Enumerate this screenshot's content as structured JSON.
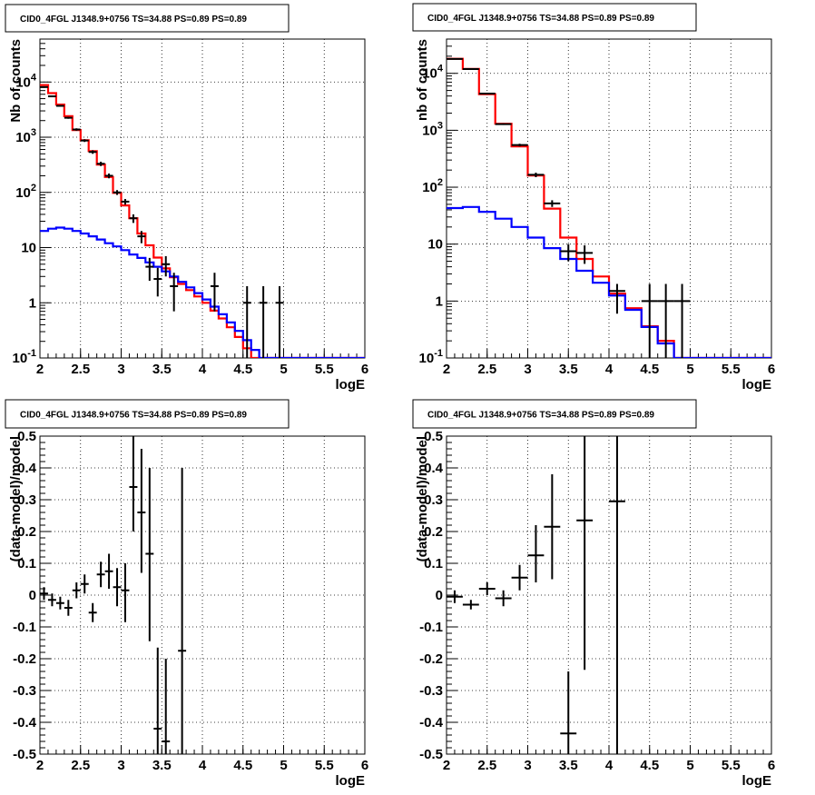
{
  "chart_data": [
    {
      "type": "line",
      "title": "CID0_4FGL J1348.9+0756 TS=34.88 PS=0.89 PS=0.89",
      "xlabel": "logE",
      "ylabel": "Nb of counts",
      "xlim": [
        2,
        6
      ],
      "ylim": [
        0.1,
        60000
      ],
      "yscale": "log",
      "grid": true,
      "xticks": [
        "2",
        "2.5",
        "3",
        "3.5",
        "4",
        "4.5",
        "5",
        "5.5",
        "6"
      ],
      "yticks": [
        {
          "v": 0.1,
          "base": "10",
          "exp": "-1"
        },
        {
          "v": 1,
          "label": "1"
        },
        {
          "v": 10,
          "label": "10"
        },
        {
          "v": 100,
          "base": "10",
          "exp": "2"
        },
        {
          "v": 1000,
          "base": "10",
          "exp": "3"
        },
        {
          "v": 10000,
          "base": "10",
          "exp": "4"
        }
      ],
      "binwidth": 0.1,
      "series": [
        {
          "color": "#ff0000",
          "x0": 2.0,
          "values": [
            8800,
            6300,
            3900,
            2400,
            1350,
            880,
            560,
            320,
            190,
            98,
            58,
            34,
            18,
            11,
            6.6,
            4.2,
            2.9,
            2.2,
            1.7,
            1.3,
            1.0,
            0.72,
            0.52,
            0.36,
            0.24,
            0.15,
            0.1,
            0.09,
            0.09,
            0.09,
            0.09,
            0.09,
            0.09,
            0.09,
            0.09,
            0.09,
            0.09,
            0.09,
            0.09,
            0.09
          ]
        },
        {
          "color": "#0000ff",
          "x0": 2.0,
          "values": [
            20,
            22,
            23,
            22,
            20,
            18,
            16,
            14,
            12,
            10.5,
            9,
            7.5,
            6.5,
            5.4,
            4.5,
            3.7,
            3.0,
            2.4,
            1.9,
            1.5,
            1.15,
            0.85,
            0.62,
            0.44,
            0.31,
            0.21,
            0.14,
            0.09,
            0.09,
            0.09,
            0.09,
            0.09,
            0.09,
            0.09,
            0.09,
            0.09,
            0.09,
            0.09,
            0.09,
            0.09
          ]
        }
      ],
      "points": [
        {
          "x": 2.05,
          "y": 8100,
          "xerr": 0.05,
          "ylo": 7900,
          "yhi": 8300
        },
        {
          "x": 2.15,
          "y": 5500,
          "xerr": 0.05,
          "ylo": 5350,
          "yhi": 5650
        },
        {
          "x": 2.25,
          "y": 3700,
          "xerr": 0.05,
          "ylo": 3580,
          "yhi": 3820
        },
        {
          "x": 2.35,
          "y": 2250,
          "xerr": 0.05,
          "ylo": 2160,
          "yhi": 2340
        },
        {
          "x": 2.45,
          "y": 1380,
          "xerr": 0.05,
          "ylo": 1310,
          "yhi": 1450
        },
        {
          "x": 2.55,
          "y": 870,
          "xerr": 0.05,
          "ylo": 820,
          "yhi": 920
        },
        {
          "x": 2.65,
          "y": 540,
          "xerr": 0.05,
          "ylo": 500,
          "yhi": 580
        },
        {
          "x": 2.75,
          "y": 330,
          "xerr": 0.05,
          "ylo": 300,
          "yhi": 360
        },
        {
          "x": 2.85,
          "y": 200,
          "xerr": 0.05,
          "ylo": 180,
          "yhi": 220
        },
        {
          "x": 2.95,
          "y": 100,
          "xerr": 0.05,
          "ylo": 90,
          "yhi": 110
        },
        {
          "x": 3.05,
          "y": 68,
          "xerr": 0.05,
          "ylo": 60,
          "yhi": 76
        },
        {
          "x": 3.15,
          "y": 34,
          "xerr": 0.05,
          "ylo": 28,
          "yhi": 40
        },
        {
          "x": 3.25,
          "y": 16,
          "xerr": 0.05,
          "ylo": 12,
          "yhi": 20
        },
        {
          "x": 3.35,
          "y": 4.5,
          "xerr": 0.05,
          "ylo": 2.5,
          "yhi": 6.5
        },
        {
          "x": 3.45,
          "y": 2.7,
          "xerr": 0.05,
          "ylo": 1.3,
          "yhi": 4.3
        },
        {
          "x": 3.55,
          "y": 5.0,
          "xerr": 0.05,
          "ylo": 3.0,
          "yhi": 7.0
        },
        {
          "x": 3.65,
          "y": 2.0,
          "xerr": 0.05,
          "ylo": 0.7,
          "yhi": 3.5
        },
        {
          "x": 4.15,
          "y": 2.0,
          "xerr": 0.05,
          "ylo": 0.7,
          "yhi": 3.5
        },
        {
          "x": 4.55,
          "y": 1.0,
          "xerr": 0.05,
          "ylo": 0.1,
          "yhi": 2.0
        },
        {
          "x": 4.75,
          "y": 1.0,
          "xerr": 0.05,
          "ylo": 0.1,
          "yhi": 2.0
        },
        {
          "x": 4.95,
          "y": 1.0,
          "xerr": 0.05,
          "ylo": 0.1,
          "yhi": 2.0
        }
      ]
    },
    {
      "type": "line",
      "title": "CID0_4FGL J1348.9+0756 TS=34.88 PS=0.89 PS=0.89",
      "xlabel": "logE",
      "ylabel": "nb of counts",
      "xlim": [
        2,
        6
      ],
      "ylim": [
        0.1,
        40000
      ],
      "yscale": "log",
      "grid": true,
      "xticks": [
        "2",
        "2.5",
        "3",
        "3.5",
        "4",
        "4.5",
        "5",
        "5.5",
        "6"
      ],
      "yticks": [
        {
          "v": 0.1,
          "base": "10",
          "exp": "-1"
        },
        {
          "v": 1,
          "label": "1"
        },
        {
          "v": 10,
          "label": "10"
        },
        {
          "v": 100,
          "base": "10",
          "exp": "2"
        },
        {
          "v": 1000,
          "base": "10",
          "exp": "3"
        },
        {
          "v": 10000,
          "base": "10",
          "exp": "4"
        }
      ],
      "binwidth": 0.2,
      "series": [
        {
          "color": "#ff0000",
          "x0": 2.0,
          "values": [
            18000,
            12000,
            4300,
            1300,
            520,
            160,
            42,
            13,
            5.5,
            2.7,
            1.35,
            0.75,
            0.36,
            0.2,
            0.1,
            0.1,
            0.1,
            0.1,
            0.1,
            0.1
          ]
        },
        {
          "color": "#0000ff",
          "x0": 2.0,
          "values": [
            43,
            45,
            37,
            28,
            20,
            13,
            8.5,
            5.5,
            3.4,
            2.1,
            1.25,
            0.7,
            0.35,
            0.18,
            0.1,
            0.1,
            0.1,
            0.1,
            0.1,
            0.1
          ]
        }
      ],
      "points": [
        {
          "x": 2.1,
          "y": 17900,
          "xerr": 0.1,
          "ylo": 17600,
          "yhi": 18200
        },
        {
          "x": 2.3,
          "y": 11900,
          "xerr": 0.1,
          "ylo": 11700,
          "yhi": 12100
        },
        {
          "x": 2.5,
          "y": 4400,
          "xerr": 0.1,
          "ylo": 4300,
          "yhi": 4500
        },
        {
          "x": 2.7,
          "y": 1280,
          "xerr": 0.1,
          "ylo": 1240,
          "yhi": 1320
        },
        {
          "x": 2.9,
          "y": 550,
          "xerr": 0.1,
          "ylo": 520,
          "yhi": 580
        },
        {
          "x": 3.1,
          "y": 165,
          "xerr": 0.1,
          "ylo": 150,
          "yhi": 180
        },
        {
          "x": 3.3,
          "y": 52,
          "xerr": 0.1,
          "ylo": 45,
          "yhi": 59
        },
        {
          "x": 3.5,
          "y": 7.5,
          "xerr": 0.1,
          "ylo": 5,
          "yhi": 10
        },
        {
          "x": 3.7,
          "y": 7.0,
          "xerr": 0.1,
          "ylo": 4.5,
          "yhi": 9.5
        },
        {
          "x": 4.1,
          "y": 1.5,
          "xerr": 0.1,
          "ylo": 0.6,
          "yhi": 2.0
        },
        {
          "x": 4.5,
          "y": 1.0,
          "xerr": 0.1,
          "ylo": 0.1,
          "yhi": 2.0
        },
        {
          "x": 4.7,
          "y": 1.0,
          "xerr": 0.1,
          "ylo": 0.1,
          "yhi": 2.0
        },
        {
          "x": 4.9,
          "y": 1.0,
          "xerr": 0.1,
          "ylo": 0.1,
          "yhi": 2.0
        }
      ]
    },
    {
      "type": "scatter",
      "title": "CID0_4FGL J1348.9+0756 TS=34.88 PS=0.89 PS=0.89",
      "xlabel": "logE",
      "ylabel": "(data-model)/model",
      "xlim": [
        2,
        6
      ],
      "ylim": [
        -0.5,
        0.5
      ],
      "grid": true,
      "xticks": [
        "2",
        "2.5",
        "3",
        "3.5",
        "4",
        "4.5",
        "5",
        "5.5",
        "6"
      ],
      "yticks": [
        "-0.5",
        "-0.4",
        "-0.3",
        "-0.2",
        "-0.1",
        "0",
        "0.1",
        "0.2",
        "0.3",
        "0.4",
        "0.5"
      ],
      "points": [
        {
          "x": 2.05,
          "y": 0.005,
          "xerr": 0.05,
          "ylo": -0.015,
          "yhi": 0.025
        },
        {
          "x": 2.15,
          "y": -0.015,
          "xerr": 0.05,
          "ylo": -0.035,
          "yhi": 0.005
        },
        {
          "x": 2.25,
          "y": -0.025,
          "xerr": 0.05,
          "ylo": -0.045,
          "yhi": -0.005
        },
        {
          "x": 2.35,
          "y": -0.04,
          "xerr": 0.05,
          "ylo": -0.065,
          "yhi": -0.015
        },
        {
          "x": 2.45,
          "y": 0.015,
          "xerr": 0.05,
          "ylo": -0.01,
          "yhi": 0.04
        },
        {
          "x": 2.55,
          "y": 0.035,
          "xerr": 0.05,
          "ylo": 0.005,
          "yhi": 0.065
        },
        {
          "x": 2.65,
          "y": -0.055,
          "xerr": 0.05,
          "ylo": -0.085,
          "yhi": -0.025
        },
        {
          "x": 2.75,
          "y": 0.065,
          "xerr": 0.05,
          "ylo": 0.025,
          "yhi": 0.105
        },
        {
          "x": 2.85,
          "y": 0.075,
          "xerr": 0.05,
          "ylo": 0.02,
          "yhi": 0.13
        },
        {
          "x": 2.95,
          "y": 0.025,
          "xerr": 0.05,
          "ylo": -0.035,
          "yhi": 0.085
        },
        {
          "x": 3.05,
          "y": 0.015,
          "xerr": 0.05,
          "ylo": -0.085,
          "yhi": 0.1
        },
        {
          "x": 3.15,
          "y": 0.34,
          "xerr": 0.05,
          "ylo": 0.2,
          "yhi": 0.5
        },
        {
          "x": 3.25,
          "y": 0.26,
          "xerr": 0.05,
          "ylo": 0.07,
          "yhi": 0.46
        },
        {
          "x": 3.35,
          "y": 0.13,
          "xerr": 0.05,
          "ylo": -0.145,
          "yhi": 0.4
        },
        {
          "x": 3.45,
          "y": -0.42,
          "xerr": 0.05,
          "ylo": -0.5,
          "yhi": -0.165
        },
        {
          "x": 3.55,
          "y": -0.46,
          "xerr": 0.05,
          "ylo": -0.5,
          "yhi": -0.2
        },
        {
          "x": 3.75,
          "y": -0.175,
          "xerr": 0.05,
          "ylo": -0.5,
          "yhi": 0.4
        }
      ]
    },
    {
      "type": "scatter",
      "title": "CID0_4FGL J1348.9+0756 TS=34.88 PS=0.89 PS=0.89",
      "xlabel": "logE",
      "ylabel": "(data-model)/model",
      "xlim": [
        2,
        6
      ],
      "ylim": [
        -0.5,
        0.5
      ],
      "grid": true,
      "xticks": [
        "2",
        "2.5",
        "3",
        "3.5",
        "4",
        "4.5",
        "5",
        "5.5",
        "6"
      ],
      "yticks": [
        "-0.5",
        "-0.4",
        "-0.3",
        "-0.2",
        "-0.1",
        "0",
        "0.1",
        "0.2",
        "0.3",
        "0.4",
        "0.5"
      ],
      "points": [
        {
          "x": 2.1,
          "y": -0.005,
          "xerr": 0.1,
          "ylo": -0.025,
          "yhi": 0.015
        },
        {
          "x": 2.3,
          "y": -0.03,
          "xerr": 0.1,
          "ylo": -0.045,
          "yhi": -0.015
        },
        {
          "x": 2.5,
          "y": 0.02,
          "xerr": 0.1,
          "ylo": 0.0,
          "yhi": 0.04
        },
        {
          "x": 2.7,
          "y": -0.01,
          "xerr": 0.1,
          "ylo": -0.035,
          "yhi": 0.015
        },
        {
          "x": 2.9,
          "y": 0.055,
          "xerr": 0.1,
          "ylo": 0.015,
          "yhi": 0.095
        },
        {
          "x": 3.1,
          "y": 0.125,
          "xerr": 0.1,
          "ylo": 0.04,
          "yhi": 0.22
        },
        {
          "x": 3.3,
          "y": 0.215,
          "xerr": 0.1,
          "ylo": 0.05,
          "yhi": 0.38
        },
        {
          "x": 3.5,
          "y": -0.435,
          "xerr": 0.1,
          "ylo": -0.5,
          "yhi": -0.24
        },
        {
          "x": 3.7,
          "y": 0.235,
          "xerr": 0.1,
          "ylo": -0.235,
          "yhi": 0.5
        },
        {
          "x": 4.1,
          "y": 0.295,
          "xerr": 0.1,
          "ylo": -0.5,
          "yhi": 0.5
        }
      ]
    }
  ]
}
